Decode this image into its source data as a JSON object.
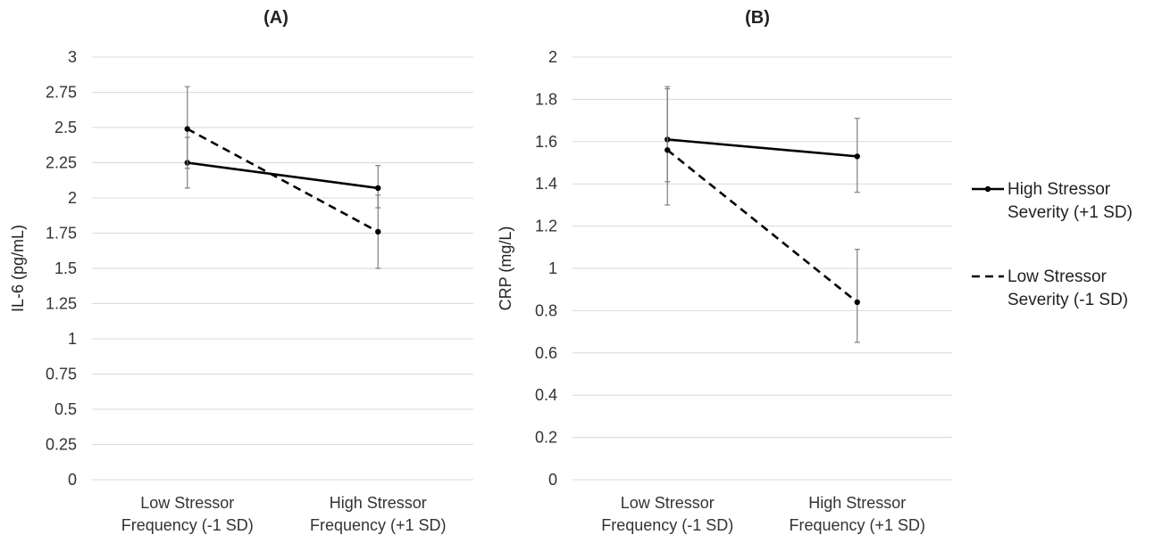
{
  "chart_data": [
    {
      "type": "line",
      "title": "(A)",
      "xlabel": "",
      "ylabel": "IL-6 (pg/mL)",
      "categories": [
        [
          "Low Stressor",
          "Frequency (-1 SD)"
        ],
        [
          "High Stressor",
          "Frequency (+1 SD)"
        ]
      ],
      "ylim": [
        0,
        3
      ],
      "yticks": [
        "0",
        "0.25",
        "0.5",
        "0.75",
        "1",
        "1.25",
        "1.5",
        "1.75",
        "2",
        "2.25",
        "2.5",
        "2.75",
        "3"
      ],
      "ytick_values": [
        0,
        0.25,
        0.5,
        0.75,
        1,
        1.25,
        1.5,
        1.75,
        2,
        2.25,
        2.5,
        2.75,
        3
      ],
      "grid": true,
      "series": [
        {
          "name": "High Stressor Severity (+1 SD)",
          "style": "solid",
          "values": [
            2.25,
            2.07
          ],
          "error_low": [
            2.07,
            1.93
          ],
          "error_high": [
            2.43,
            2.23
          ]
        },
        {
          "name": "Low Stressor Severity (-1 SD)",
          "style": "dashed",
          "values": [
            2.49,
            1.76
          ],
          "error_low": [
            2.21,
            1.5
          ],
          "error_high": [
            2.79,
            2.02
          ]
        }
      ]
    },
    {
      "type": "line",
      "title": "(B)",
      "xlabel": "",
      "ylabel": "CRP (mg/L)",
      "categories": [
        [
          "Low Stressor",
          "Frequency (-1 SD)"
        ],
        [
          "High Stressor",
          "Frequency (+1 SD)"
        ]
      ],
      "ylim": [
        0,
        2
      ],
      "yticks": [
        "0",
        "0.2",
        "0.4",
        "0.6",
        "0.8",
        "1",
        "1.2",
        "1.4",
        "1.6",
        "1.8",
        "2"
      ],
      "ytick_values": [
        0,
        0.2,
        0.4,
        0.6,
        0.8,
        1,
        1.2,
        1.4,
        1.6,
        1.8,
        2
      ],
      "grid": true,
      "series": [
        {
          "name": "High Stressor Severity (+1 SD)",
          "style": "solid",
          "values": [
            1.61,
            1.53
          ],
          "error_low": [
            1.41,
            1.36
          ],
          "error_high": [
            1.86,
            1.71
          ]
        },
        {
          "name": "Low Stressor Severity (-1 SD)",
          "style": "dashed",
          "values": [
            1.56,
            0.84
          ],
          "error_low": [
            1.3,
            0.65
          ],
          "error_high": [
            1.85,
            1.09
          ]
        }
      ]
    }
  ],
  "legend": {
    "placement": "right",
    "items": [
      {
        "lines": [
          "High Stressor",
          "Severity (+1 SD)"
        ],
        "style": "solid"
      },
      {
        "lines": [
          "Low Stressor",
          "Severity (-1 SD)"
        ],
        "style": "dashed"
      }
    ]
  },
  "colors": {
    "line": "#000000",
    "grid": "#d9d9d9",
    "error": "#7f7f7f",
    "text": "#222222"
  }
}
